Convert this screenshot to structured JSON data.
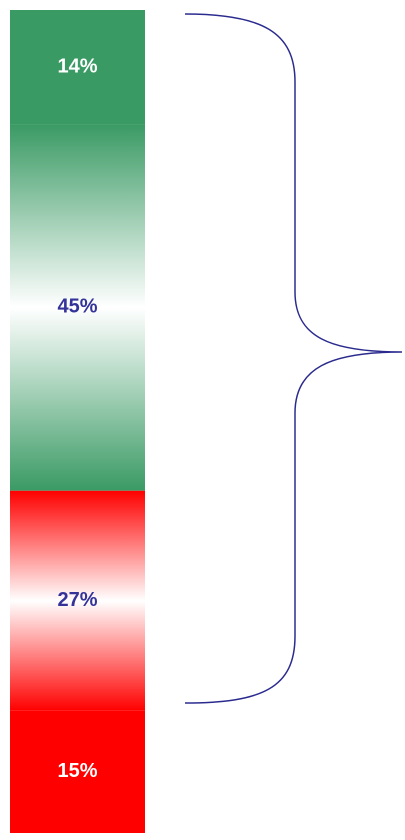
{
  "chart_data": {
    "type": "bar",
    "stacked": true,
    "values": [
      14,
      45,
      27,
      15
    ],
    "value_labels": [
      "14%",
      "45%",
      "27%",
      "15%"
    ],
    "colors": [
      "#3a9a64",
      "#3a9a64",
      "#ff0000",
      "#ff0000"
    ],
    "gradient": [
      false,
      true,
      true,
      false
    ],
    "label_colors": [
      "#ffffff",
      "#333399",
      "#333399",
      "#ffffff"
    ]
  }
}
